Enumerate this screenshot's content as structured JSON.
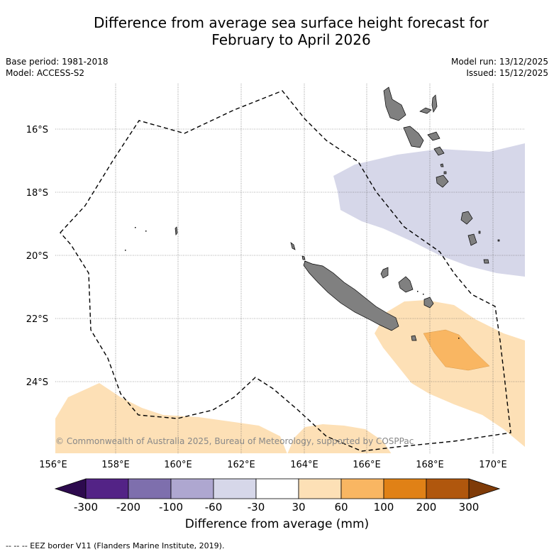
{
  "title": {
    "line1": "Difference from average sea surface height forecast for",
    "line2": "February to April 2026"
  },
  "meta": {
    "base_period": "Base period: 1981-2018",
    "model": "Model: ACCESS-S2",
    "model_run": "Model run: 13/12/2025",
    "issued": "Issued: 15/12/2025"
  },
  "map": {
    "lat_labels": [
      "16°S",
      "18°S",
      "20°S",
      "22°S",
      "24°S"
    ],
    "lon_labels": [
      "156°E",
      "158°E",
      "160°E",
      "162°E",
      "164°E",
      "166°E",
      "168°E",
      "170°E"
    ],
    "copyright": "© Commonwealth of Australia 2025, Bureau of Meteorology, supported by COSPPac",
    "colors": {
      "land": "#808080",
      "neg_30_60": "#d6d7e9",
      "pos_30_60": "#fde0b6",
      "pos_60_100": "#f9b662"
    }
  },
  "colorbar": {
    "title": "Difference from average (mm)",
    "ticks": [
      "-300",
      "-200",
      "-100",
      "-60",
      "-30",
      "30",
      "60",
      "100",
      "200",
      "300"
    ],
    "colors": [
      "#532386",
      "#7e6fad",
      "#aea7d0",
      "#d6d7e9",
      "#ffffff",
      "#fde0b6",
      "#f9b662",
      "#e08116",
      "#b0570d"
    ],
    "under_color": "#2d0a4e",
    "over_color": "#7f3b08"
  },
  "footer": "--  --  -- EEZ border V11 (Flanders Marine Institute, 2019)."
}
